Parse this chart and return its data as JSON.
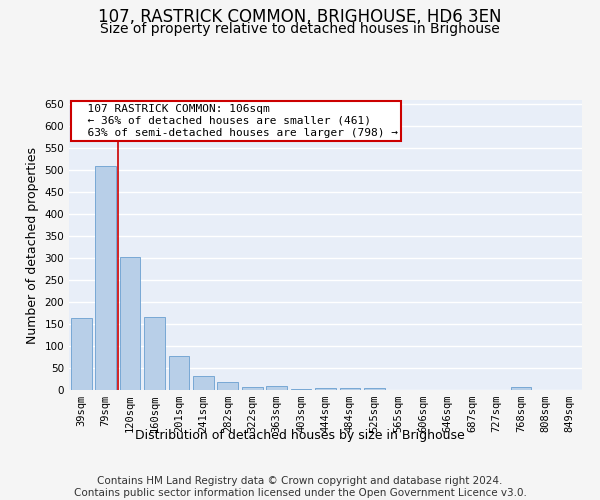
{
  "title": "107, RASTRICK COMMON, BRIGHOUSE, HD6 3EN",
  "subtitle": "Size of property relative to detached houses in Brighouse",
  "xlabel": "Distribution of detached houses by size in Brighouse",
  "ylabel": "Number of detached properties",
  "categories": [
    "39sqm",
    "79sqm",
    "120sqm",
    "160sqm",
    "201sqm",
    "241sqm",
    "282sqm",
    "322sqm",
    "363sqm",
    "403sqm",
    "444sqm",
    "484sqm",
    "525sqm",
    "565sqm",
    "606sqm",
    "646sqm",
    "687sqm",
    "727sqm",
    "768sqm",
    "808sqm",
    "849sqm"
  ],
  "values": [
    165,
    510,
    302,
    167,
    78,
    31,
    19,
    7,
    10,
    2,
    5,
    5,
    5,
    0,
    0,
    0,
    0,
    0,
    6,
    0,
    0
  ],
  "bar_color": "#b8cfe8",
  "bar_edge_color": "#6a9fd0",
  "bg_color": "#e8eef8",
  "grid_color": "#ffffff",
  "annotation_box_text": "  107 RASTRICK COMMON: 106sqm\n  ← 36% of detached houses are smaller (461)\n  63% of semi-detached houses are larger (798) →",
  "annotation_box_color": "#ffffff",
  "annotation_box_edge_color": "#cc0000",
  "red_line_x": 1.5,
  "red_line_color": "#cc0000",
  "ylim": [
    0,
    660
  ],
  "yticks": [
    0,
    50,
    100,
    150,
    200,
    250,
    300,
    350,
    400,
    450,
    500,
    550,
    600,
    650
  ],
  "footer": "Contains HM Land Registry data © Crown copyright and database right 2024.\nContains public sector information licensed under the Open Government Licence v3.0.",
  "title_fontsize": 12,
  "subtitle_fontsize": 10,
  "axis_label_fontsize": 9,
  "tick_fontsize": 7.5,
  "footer_fontsize": 7.5,
  "annot_fontsize": 8
}
